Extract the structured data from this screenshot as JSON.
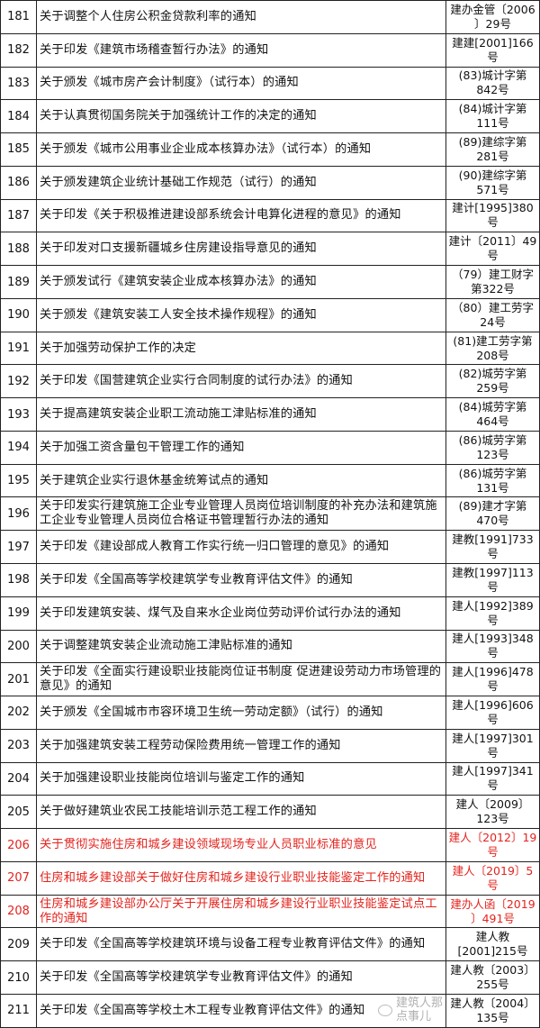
{
  "accent_red": "#e3241e",
  "watermark": "建筑人那点事儿",
  "rows": [
    {
      "no": "181",
      "title": "关于调整个人住房公积金贷款利率的通知",
      "doc": "建办金管〔2006\n〕29号",
      "red": false
    },
    {
      "no": "182",
      "title": "关于印发《建筑市场稽查暂行办法》的通知",
      "doc": "建建[2001]166\n号",
      "red": false
    },
    {
      "no": "183",
      "title": "关于颁发《城市房产会计制度》（试行本）的通知",
      "doc": "(83)城计字第\n842号",
      "red": false
    },
    {
      "no": "184",
      "title": "关于认真贯彻国务院关于加强统计工作的决定的通知",
      "doc": "(84)城计字第\n111号",
      "red": false
    },
    {
      "no": "185",
      "title": "关于颁发《城市公用事业企业成本核算办法》（试行本）的通知",
      "doc": "(89)建综字第\n281号",
      "red": false
    },
    {
      "no": "186",
      "title": "关于颁发建筑企业统计基础工作规范（试行）的通知",
      "doc": "(90)建综字第\n571号",
      "red": false
    },
    {
      "no": "187",
      "title": "关于印发《关于积极推进建设部系统会计电算化进程的意见》的通知",
      "doc": "建计[1995]380\n号",
      "red": false
    },
    {
      "no": "188",
      "title": "关于印发对口支援新疆城乡住房建设指导意见的通知",
      "doc": "建计〔2011〕49\n号",
      "red": false
    },
    {
      "no": "189",
      "title": "关于颁发试行《建筑安装企业成本核算办法》的通知",
      "doc": "（79）建工财字\n第322号",
      "red": false
    },
    {
      "no": "190",
      "title": "关于颁发《建筑安装工人安全技术操作规程》的通知",
      "doc": "（80）建工劳字\n24号",
      "red": false
    },
    {
      "no": "191",
      "title": "关于加强劳动保护工作的决定",
      "doc": "(81)建工劳字第\n208号",
      "red": false
    },
    {
      "no": "192",
      "title": "关于印发《国营建筑企业实行合同制度的试行办法》的通知",
      "doc": "(82)城劳字第\n259号",
      "red": false
    },
    {
      "no": "193",
      "title": "关于提高建筑安装企业职工流动施工津贴标准的通知",
      "doc": "(84)城劳字第\n464号",
      "red": false
    },
    {
      "no": "194",
      "title": "关于加强工资含量包干管理工作的通知",
      "doc": "(86)城劳字第\n123号",
      "red": false
    },
    {
      "no": "195",
      "title": "关于建筑企业实行退休基金统筹试点的通知",
      "doc": "(86)城劳字第\n131号",
      "red": false
    },
    {
      "no": "196",
      "title": "关于印发实行建筑施工企业专业管理人员岗位培训制度的补充办法和建筑施工企业专业管理人员岗位合格证书管理暂行办法的通知",
      "doc": "(89)建才字第\n470号",
      "red": false
    },
    {
      "no": "197",
      "title": "关于印发《建设部成人教育工作实行统一归口管理的意见》的通知",
      "doc": "建教[1991]733\n号",
      "red": false
    },
    {
      "no": "198",
      "title": "关于印发《全国高等学校建筑学专业教育评估文件》的通知",
      "doc": "建教[1997]113\n号",
      "red": false
    },
    {
      "no": "199",
      "title": "关于印发建筑安装、煤气及自来水企业岗位劳动评价试行办法的通知",
      "doc": "建人[1992]389\n号",
      "red": false
    },
    {
      "no": "200",
      "title": "关于调整建筑安装企业流动施工津贴标准的通知",
      "doc": "建人[1993]348\n号",
      "red": false
    },
    {
      "no": "201",
      "title": "关于印发《全面实行建设职业技能岗位证书制度 促进建设劳动力市场管理的意见》的通知",
      "doc": "建人[1996]478\n号",
      "red": false
    },
    {
      "no": "202",
      "title": "关于颁发《全国城市市容环境卫生统一劳动定额》（试行）的通知",
      "doc": "建人[1996]606\n号",
      "red": false
    },
    {
      "no": "203",
      "title": "关于加强建筑安装工程劳动保险费用统一管理工作的通知",
      "doc": "建人[1997]301\n号",
      "red": false
    },
    {
      "no": "204",
      "title": "关于加强建设职业技能岗位培训与鉴定工作的通知",
      "doc": "建人[1997]341\n号",
      "red": false
    },
    {
      "no": "205",
      "title": "关于做好建筑业农民工技能培训示范工程工作的通知",
      "doc": "建人〔2009〕\n123号",
      "red": false
    },
    {
      "no": "206",
      "title": "关于贯彻实施住房和城乡建设领域现场专业人员职业标准的意见",
      "doc": "建人〔2012〕19\n号",
      "red": true
    },
    {
      "no": "207",
      "title": "住房和城乡建设部关于做好住房和城乡建设行业职业技能鉴定工作的通知",
      "doc": "建人〔2019〕5\n号",
      "red": true
    },
    {
      "no": "208",
      "title": "住房和城乡建设部办公厅关于开展住房和城乡建设行业职业技能鉴定试点工作的通知",
      "doc": "建办人函〔2019\n〕491号",
      "red": true
    },
    {
      "no": "209",
      "title": "关于印发《全国高等学校建筑环境与设备工程专业教育评估文件》的通知",
      "doc": "建人教\n[2001]215号",
      "red": false
    },
    {
      "no": "210",
      "title": "关于印发《全国高等学校建筑学专业教育评估文件》的通知",
      "doc": "建人教〔2003〕\n255号",
      "red": false
    },
    {
      "no": "211",
      "title": "关于印发《全国高等学校土木工程专业教育评估文件》的通知",
      "doc": "建人教〔2004〕\n135号",
      "red": false
    }
  ]
}
